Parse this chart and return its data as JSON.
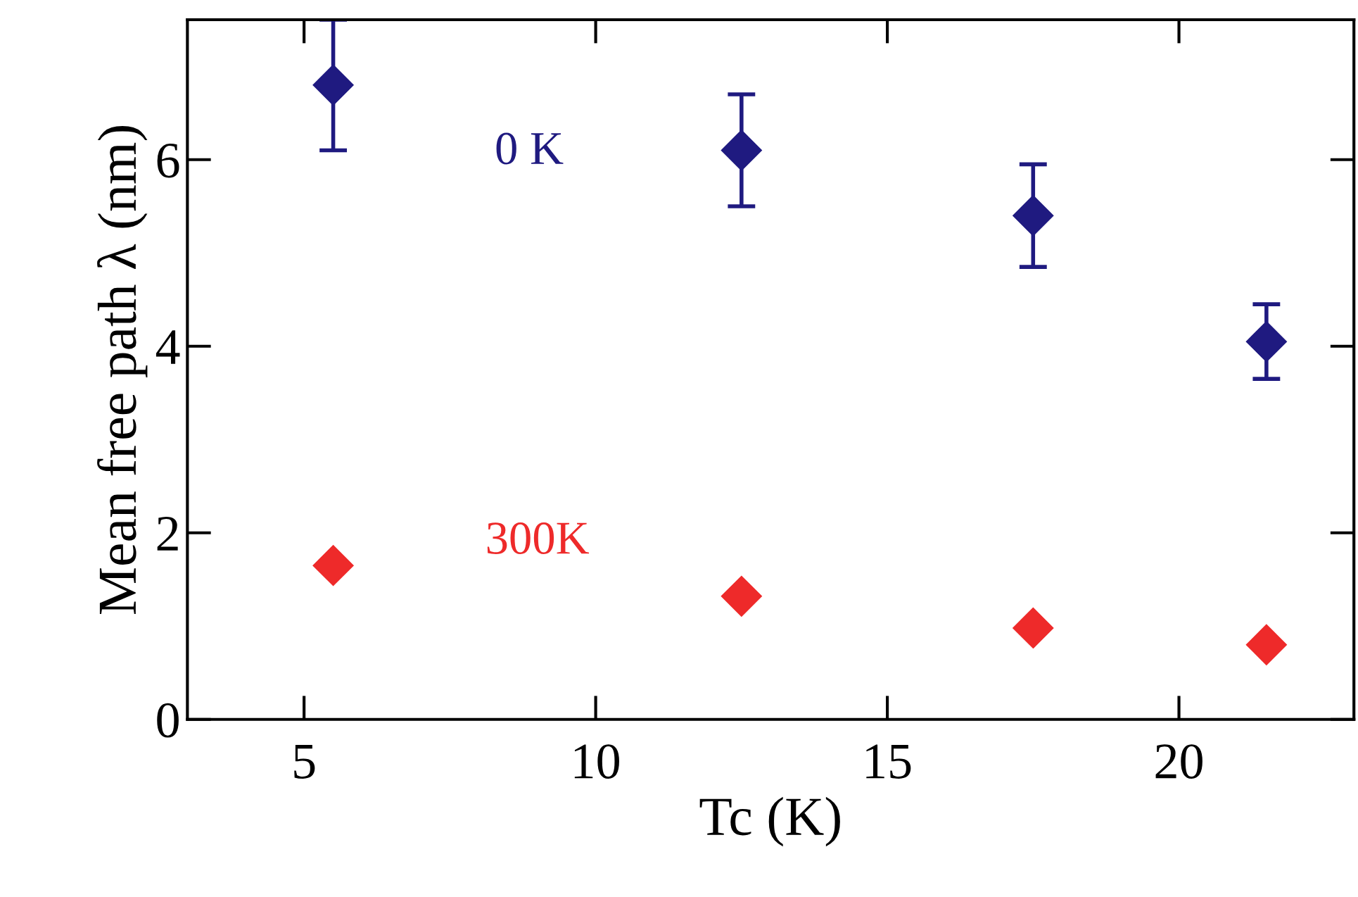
{
  "chart_data": {
    "type": "scatter",
    "xlabel": "Tc (K)",
    "ylabel": "Mean free path λ (nm)",
    "x": [
      5.5,
      12.5,
      17.5,
      21.5
    ],
    "series": [
      {
        "name": "0 K",
        "color": "#1f1a80",
        "values": [
          6.8,
          6.1,
          5.4,
          4.05
        ],
        "errors": [
          0.7,
          0.6,
          0.55,
          0.4
        ]
      },
      {
        "name": "300K",
        "color": "#ee2a2a",
        "values": [
          1.65,
          1.32,
          0.98,
          0.8
        ]
      }
    ],
    "xlim": [
      3,
      23
    ],
    "xticks": [
      5,
      10,
      15,
      20
    ],
    "ylim": [
      0,
      7.5
    ],
    "yticks": [
      0,
      2,
      4,
      6
    ],
    "marker": "diamond",
    "grid": false,
    "legend": false
  }
}
